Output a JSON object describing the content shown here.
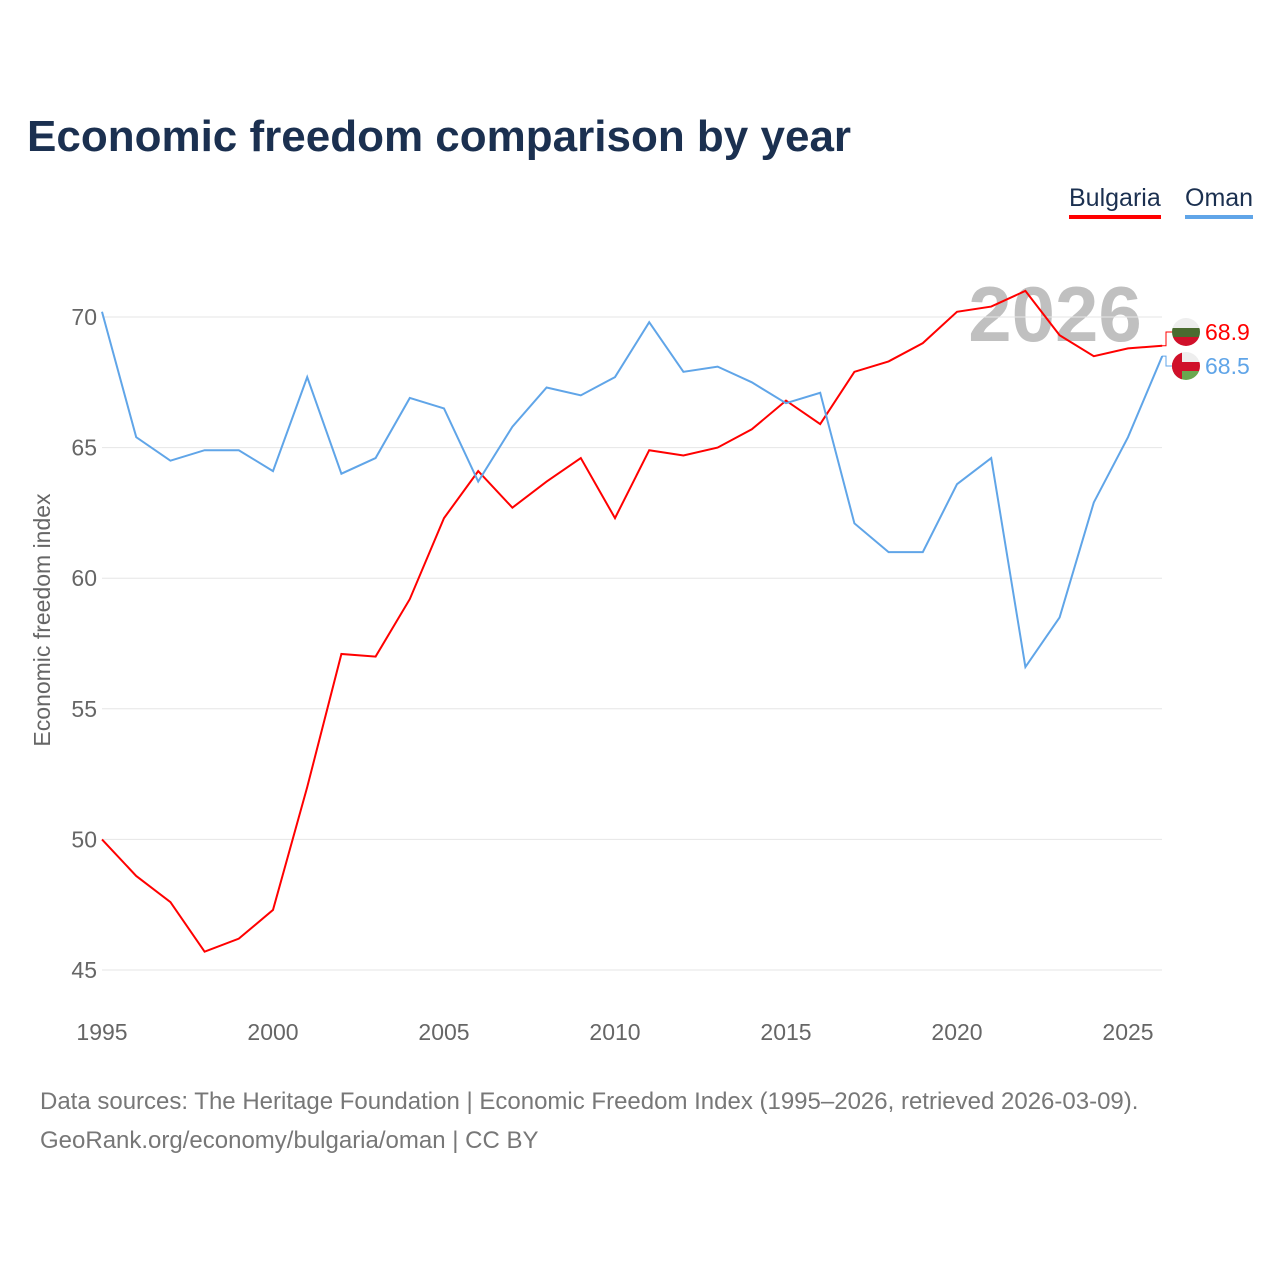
{
  "chart_data": {
    "type": "line",
    "title": "Economic freedom comparison by year",
    "ylabel": "Economic freedom index",
    "xlabel": "",
    "ylim": [
      45,
      71.5
    ],
    "xlim": [
      1995,
      2026
    ],
    "yticks": [
      45,
      50,
      55,
      60,
      65,
      70
    ],
    "xticks": [
      1995,
      2000,
      2005,
      2010,
      2015,
      2020,
      2025
    ],
    "grid": true,
    "legend_position": "top-right",
    "watermark_year": "2026",
    "x": [
      1995,
      1996,
      1997,
      1998,
      1999,
      2000,
      2001,
      2002,
      2003,
      2004,
      2005,
      2006,
      2007,
      2008,
      2009,
      2010,
      2011,
      2012,
      2013,
      2014,
      2015,
      2016,
      2017,
      2018,
      2019,
      2020,
      2021,
      2022,
      2023,
      2024,
      2025,
      2026
    ],
    "series": [
      {
        "name": "Bulgaria",
        "color": "#ff0000",
        "end_label": "68.9",
        "values": [
          50.0,
          48.6,
          47.6,
          45.7,
          46.2,
          47.3,
          52.0,
          57.1,
          57.0,
          59.2,
          62.3,
          64.1,
          62.7,
          63.7,
          64.6,
          62.3,
          64.9,
          64.7,
          65.0,
          65.7,
          66.8,
          65.9,
          67.9,
          68.3,
          69.0,
          70.2,
          70.4,
          71.0,
          69.3,
          68.5,
          68.8,
          68.9
        ]
      },
      {
        "name": "Oman",
        "color": "#60a5e8",
        "end_label": "68.5",
        "values": [
          70.2,
          65.4,
          64.5,
          64.9,
          64.9,
          64.1,
          67.7,
          64.0,
          64.6,
          66.9,
          66.5,
          63.7,
          65.8,
          67.3,
          67.0,
          67.7,
          69.8,
          67.9,
          68.1,
          67.5,
          66.7,
          67.1,
          62.1,
          61.0,
          61.0,
          63.6,
          64.6,
          56.6,
          58.5,
          62.9,
          65.4,
          68.5
        ]
      }
    ]
  },
  "footer": {
    "line1": "Data sources: The Heritage Foundation | Economic Freedom Index (1995–2026, retrieved 2026-03-09).",
    "line2": "GeoRank.org/economy/bulgaria/oman | CC BY"
  }
}
